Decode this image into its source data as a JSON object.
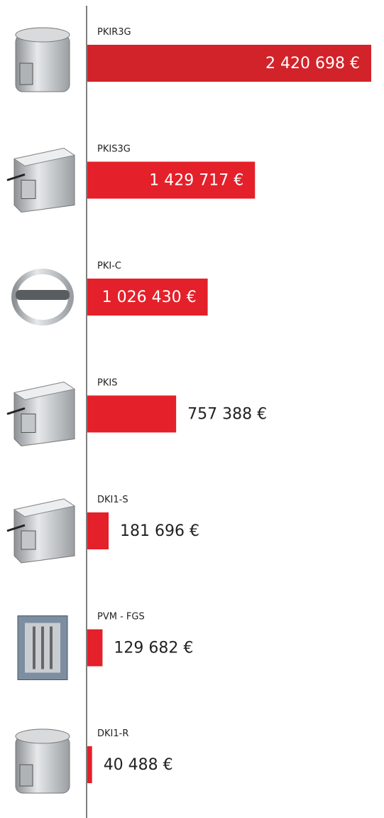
{
  "chart_data": {
    "type": "bar",
    "orientation": "horizontal",
    "categories": [
      "PKIR3G",
      "PKIS3G",
      "PKI-C",
      "PKIS",
      "DKI1-S",
      "PVM - FGS",
      "DKI1-R"
    ],
    "values": [
      2420698,
      1429717,
      1026430,
      757388,
      181696,
      129682,
      40488
    ],
    "value_labels": [
      "2 420 698 €",
      "1 429 717 €",
      "1 026 430 €",
      "757 388 €",
      "181 696 €",
      "129 682 €",
      "40 488 €"
    ],
    "colors": [
      "#d2232a",
      "#e4202a",
      "#e4202a",
      "#e4202a",
      "#e4202a",
      "#e4202a",
      "#e4202a"
    ]
  }
}
